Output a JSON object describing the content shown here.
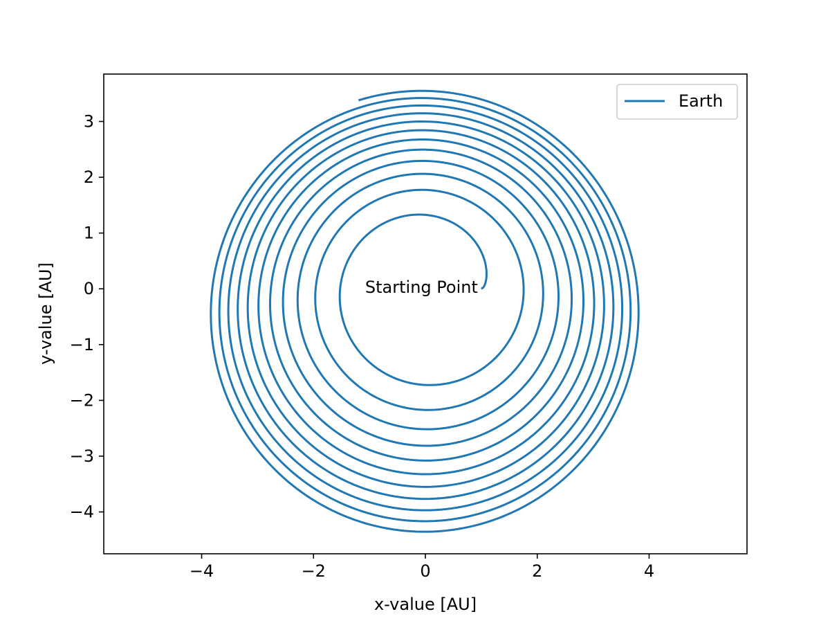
{
  "chart_data": {
    "type": "line",
    "title": "",
    "xlabel": "x-value [AU]",
    "ylabel": "y-value [AU]",
    "xlim": [
      -5.75,
      5.75
    ],
    "ylim": [
      -4.75,
      3.85
    ],
    "xticks": [
      -4,
      -2,
      0,
      2,
      4
    ],
    "yticks": [
      -4,
      -3,
      -2,
      -1,
      0,
      1,
      2,
      3
    ],
    "xtick_labels": [
      "−4",
      "−2",
      "0",
      "2",
      "4"
    ],
    "ytick_labels": [
      "−4",
      "−3",
      "−2",
      "−1",
      "0",
      "1",
      "2",
      "3"
    ],
    "grid": false,
    "legend": {
      "placement": "top-right",
      "entries": [
        "Earth"
      ]
    },
    "annotations": [
      {
        "text": "Starting Point",
        "x": 1.0,
        "y": 0.0
      }
    ],
    "series": [
      {
        "name": "Earth",
        "color": "#1f77b4",
        "shape": "outward spiral",
        "start": [
          1.0,
          0.0
        ],
        "end": [
          -1.2,
          3.3
        ],
        "turns": 11.4,
        "outer_extent": {
          "xmin": -3.85,
          "xmax": 3.75,
          "ymin": -4.35,
          "ymax": 3.45
        }
      }
    ]
  }
}
